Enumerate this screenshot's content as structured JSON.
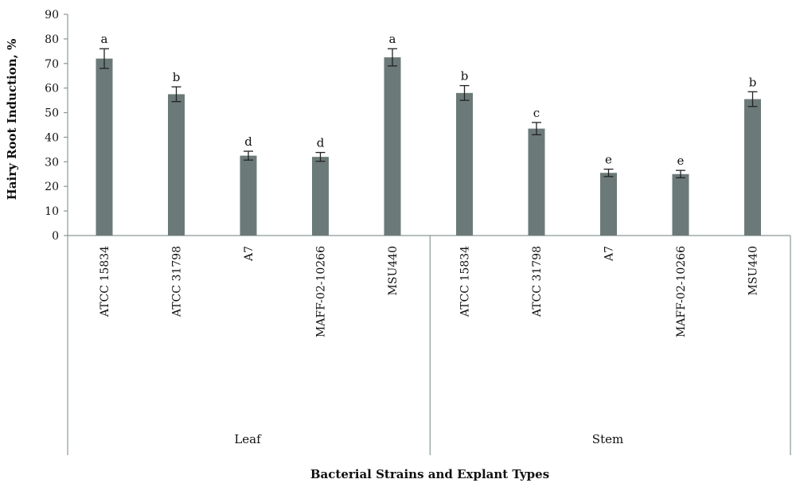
{
  "chart_data": {
    "type": "bar",
    "ylabel": "Hairy Root Induction, %",
    "xlabel": "Bacterial Strains and Explant Types",
    "ylim": [
      0,
      90
    ],
    "yticks": [
      0,
      10,
      20,
      30,
      40,
      50,
      60,
      70,
      80,
      90
    ],
    "grid": false,
    "legend": "none",
    "bar_color": "#6b7a78",
    "groups": [
      {
        "name": "Leaf",
        "bars": [
          {
            "category": "ATCC 15834",
            "value": 72,
            "error": 4,
            "letter": "a"
          },
          {
            "category": "ATCC 31798",
            "value": 57.5,
            "error": 3,
            "letter": "b"
          },
          {
            "category": "A7",
            "value": 32.5,
            "error": 1.8,
            "letter": "d"
          },
          {
            "category": "MAFF-02-10266",
            "value": 32,
            "error": 1.8,
            "letter": "d"
          },
          {
            "category": "MSU440",
            "value": 72.5,
            "error": 3.5,
            "letter": "a"
          }
        ]
      },
      {
        "name": "Stem",
        "bars": [
          {
            "category": "ATCC 15834",
            "value": 58,
            "error": 3,
            "letter": "b"
          },
          {
            "category": "ATCC 31798",
            "value": 43.5,
            "error": 2.5,
            "letter": "c"
          },
          {
            "category": "A7",
            "value": 25.5,
            "error": 1.5,
            "letter": "e"
          },
          {
            "category": "MAFF-02-10266",
            "value": 25,
            "error": 1.5,
            "letter": "e"
          },
          {
            "category": "MSU440",
            "value": 55.5,
            "error": 3,
            "letter": "b"
          }
        ]
      }
    ]
  }
}
